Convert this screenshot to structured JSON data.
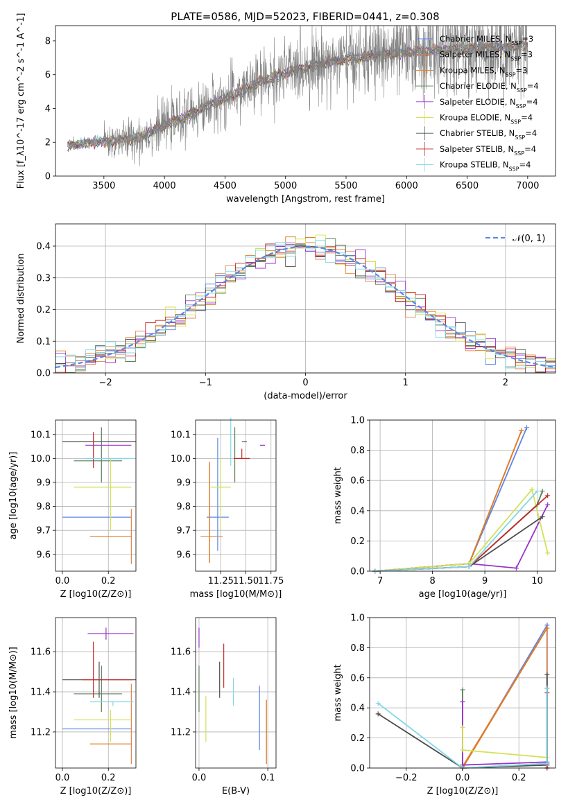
{
  "figure": {
    "title": "PLATE=0586, MJD=52023, FIBERID=0441, z=0.308"
  },
  "models": [
    {
      "key": "chabrier_miles",
      "label": "Chabrier MILES, N",
      "sub": "SSP",
      "suffix": "=3",
      "color": "#5b86e5"
    },
    {
      "key": "salpeter_miles",
      "label": "Salpeter MILES, N",
      "sub": "SSP",
      "suffix": "=3",
      "color": "#dd8452"
    },
    {
      "key": "kroupa_miles",
      "label": "Kroupa MILES, N",
      "sub": "SSP",
      "suffix": "=3",
      "color": "#e07b22"
    },
    {
      "key": "chabrier_elodie",
      "label": "Chabrier ELODIE, N",
      "sub": "SSP",
      "suffix": "=4",
      "color": "#5a7d5a"
    },
    {
      "key": "salpeter_elodie",
      "label": "Salpeter ELODIE, N",
      "sub": "SSP",
      "suffix": "=4",
      "color": "#9932cc"
    },
    {
      "key": "kroupa_elodie",
      "label": "Kroupa ELODIE, N",
      "sub": "SSP",
      "suffix": "=4",
      "color": "#d4e157"
    },
    {
      "key": "chabrier_stelib",
      "label": "Chabrier STELIB, N",
      "sub": "SSP",
      "suffix": "=4",
      "color": "#4d4d4d"
    },
    {
      "key": "salpeter_stelib",
      "label": "Salpeter STELIB, N",
      "sub": "SSP",
      "suffix": "=4",
      "color": "#c62828"
    },
    {
      "key": "kroupa_stelib",
      "label": "Kroupa STELIB, N",
      "sub": "SSP",
      "suffix": "=4",
      "color": "#80d8e8"
    }
  ],
  "chart_data": [
    {
      "id": "spectrum",
      "type": "line",
      "xlabel": "wavelength [Angstrom, rest frame]",
      "ylabel": "Flux [f_λ10^-17 erg cm^-2 s^-1 A^-1]",
      "xlim": [
        3100,
        7230
      ],
      "ylim": [
        0,
        8.9
      ],
      "xticks": [
        3500,
        4000,
        4500,
        5000,
        5500,
        6000,
        6500,
        7000
      ],
      "yticks": [
        0,
        2,
        4,
        6,
        8
      ],
      "grid": false,
      "legend": "upper right",
      "continuum": {
        "wavelength": [
          3200,
          3400,
          3600,
          3800,
          4000,
          4200,
          4400,
          4600,
          4800,
          5000,
          5200,
          5400,
          5600,
          5800,
          6000,
          6200,
          6400,
          6600,
          6800,
          7000,
          7200
        ],
        "flux": [
          1.8,
          2.0,
          2.1,
          2.3,
          3.0,
          3.6,
          4.3,
          4.9,
          5.6,
          6.1,
          6.5,
          6.8,
          7.0,
          7.2,
          7.3,
          7.4,
          7.5,
          7.6,
          7.6,
          7.7,
          7.8
        ]
      }
    },
    {
      "id": "residual-histogram",
      "type": "bar",
      "xlabel": "(data-model)/error",
      "ylabel": "Normed distribution",
      "xlim": [
        -2.5,
        2.5
      ],
      "ylim": [
        0,
        0.47
      ],
      "xticks": [
        -2,
        -1,
        0,
        1,
        2
      ],
      "yticks": [
        0.0,
        0.1,
        0.2,
        0.3,
        0.4
      ],
      "grid": true,
      "legend": "upper right",
      "reference_label": "𝒩(0, 1)",
      "reference_color": "#5b86e5"
    },
    {
      "id": "age-vs-metallicity",
      "type": "scatter",
      "xlabel": "Z [log10(Z/Z⊙)]",
      "ylabel": "age [log10(age/yr)]",
      "xlim": [
        -0.03,
        0.32
      ],
      "ylim": [
        9.53,
        10.16
      ],
      "xticks": [
        0.0,
        0.2
      ],
      "yticks": [
        9.6,
        9.7,
        9.8,
        9.9,
        10.0,
        10.1
      ],
      "grid": true,
      "points": [
        {
          "model": "chabrier_miles",
          "x": 0.15,
          "xerr": [
            0.15,
            0.15
          ],
          "y": 9.755,
          "yerr": [
            0,
            0
          ]
        },
        {
          "model": "salpeter_miles",
          "x": 0.3,
          "xerr": [
            0,
            0
          ],
          "y": 9.675,
          "yerr": [
            0.115,
            0.115
          ]
        },
        {
          "model": "kroupa_miles",
          "x": 0.21,
          "xerr": [
            0.09,
            0.09
          ],
          "y": 9.675,
          "yerr": [
            0,
            0
          ]
        },
        {
          "model": "chabrier_elodie",
          "x": 0.17,
          "xerr": [
            0.12,
            0.09
          ],
          "y": 9.99,
          "yerr": [
            0.09,
            0.14
          ]
        },
        {
          "model": "salpeter_elodie",
          "x": 0.18,
          "xerr": [
            0.08,
            0.12
          ],
          "y": 10.055,
          "yerr": [
            0,
            0
          ]
        },
        {
          "model": "kroupa_elodie",
          "x": 0.21,
          "xerr": [
            0.16,
            0.09
          ],
          "y": 9.88,
          "yerr": [
            0.18,
            0.12
          ]
        },
        {
          "model": "chabrier_stelib",
          "x": 0.16,
          "xerr": [
            0.16,
            0.16
          ],
          "y": 10.07,
          "yerr": [
            0,
            0
          ]
        },
        {
          "model": "salpeter_stelib",
          "x": 0.135,
          "xerr": [
            0,
            0
          ],
          "y": 10.04,
          "yerr": [
            0.08,
            0.07
          ]
        },
        {
          "model": "kroupa_stelib",
          "x": 0.22,
          "xerr": [
            0.12,
            0.09
          ],
          "y": 10.0,
          "yerr": [
            0,
            0
          ]
        }
      ]
    },
    {
      "id": "age-vs-mass",
      "type": "scatter",
      "xlabel": "mass [log10(M/M⊙)]",
      "ylabel": "",
      "xlim": [
        11.0,
        11.8
      ],
      "ylim": [
        9.53,
        10.16
      ],
      "xticks": [
        11.25,
        11.5,
        11.75
      ],
      "xticklabels": [
        "11.25",
        "11.50",
        "11.75"
      ],
      "yticks": [
        9.6,
        9.7,
        9.8,
        9.9,
        10.0,
        10.1
      ],
      "grid": true,
      "points": [
        {
          "model": "chabrier_miles",
          "x": 11.22,
          "xerr": [
            0.11,
            0.11
          ],
          "y": 9.755,
          "yerr": [
            0.14,
            0.33
          ]
        },
        {
          "model": "salpeter_miles",
          "x": 11.14,
          "xerr": [
            0.09,
            0.13
          ],
          "y": 9.675,
          "yerr": [
            0.11,
            0.31
          ]
        },
        {
          "model": "kroupa_miles",
          "x": 11.14,
          "xerr": [
            0,
            0
          ],
          "y": 9.675,
          "yerr": [
            0.11,
            0.31
          ]
        },
        {
          "model": "chabrier_elodie",
          "x": 11.39,
          "xerr": [
            0,
            0
          ],
          "y": 9.99,
          "yerr": [
            0.09,
            0.14
          ]
        },
        {
          "model": "salpeter_elodie",
          "x": 11.69,
          "xerr": [
            0.05,
            0
          ],
          "y": 10.055,
          "yerr": [
            0,
            0.0
          ]
        },
        {
          "model": "kroupa_elodie",
          "x": 11.25,
          "xerr": [
            0.1,
            0.1
          ],
          "y": 9.88,
          "yerr": [
            0.18,
            0.12
          ]
        },
        {
          "model": "chabrier_stelib",
          "x": 11.46,
          "xerr": [
            0,
            0.05
          ],
          "y": 10.07,
          "yerr": [
            0,
            0
          ]
        },
        {
          "model": "salpeter_stelib",
          "x": 11.46,
          "xerr": [
            0.08,
            0.08
          ],
          "y": 10.0,
          "yerr": [
            0,
            0.04
          ]
        },
        {
          "model": "kroupa_stelib",
          "x": 11.35,
          "xerr": [
            0,
            0
          ],
          "y": 10.0,
          "yerr": [
            0.03,
            0.17
          ]
        }
      ]
    },
    {
      "id": "mass-weight-vs-age",
      "type": "line",
      "xlabel": "age  [log10(age/yr)]",
      "ylabel": "mass weight",
      "xlim": [
        6.8,
        10.35
      ],
      "ylim": [
        0.0,
        1.0
      ],
      "xticks": [
        7,
        8,
        9,
        10
      ],
      "yticks": [
        0.0,
        0.2,
        0.4,
        0.6,
        0.8,
        1.0
      ],
      "grid": true,
      "series": [
        {
          "model": "chabrier_miles",
          "x": [
            6.9,
            8.7,
            9.8
          ],
          "y": [
            0.0,
            0.05,
            0.95
          ]
        },
        {
          "model": "salpeter_miles",
          "x": [
            6.9,
            8.7,
            9.7
          ],
          "y": [
            0.0,
            0.05,
            0.93
          ]
        },
        {
          "model": "kroupa_miles",
          "x": [
            6.9,
            8.7,
            9.7
          ],
          "y": [
            0.0,
            0.05,
            0.93
          ]
        },
        {
          "model": "chabrier_elodie",
          "x": [
            6.9,
            8.7,
            10.0,
            10.1
          ],
          "y": [
            0.0,
            0.03,
            0.44,
            0.53
          ]
        },
        {
          "model": "salpeter_elodie",
          "x": [
            6.9,
            8.7,
            9.6,
            10.2
          ],
          "y": [
            0.0,
            0.05,
            0.02,
            0.44
          ]
        },
        {
          "model": "kroupa_elodie",
          "x": [
            6.9,
            8.7,
            9.9,
            10.2
          ],
          "y": [
            0.0,
            0.05,
            0.54,
            0.12
          ]
        },
        {
          "model": "chabrier_stelib",
          "x": [
            6.9,
            8.7,
            10.1
          ],
          "y": [
            0.0,
            0.03,
            0.36
          ]
        },
        {
          "model": "salpeter_stelib",
          "x": [
            6.9,
            8.7,
            10.2
          ],
          "y": [
            0.0,
            0.03,
            0.5
          ]
        },
        {
          "model": "kroupa_stelib",
          "x": [
            6.9,
            8.7,
            10.0
          ],
          "y": [
            0.0,
            0.03,
            0.53
          ]
        }
      ]
    },
    {
      "id": "mass-vs-metallicity",
      "type": "scatter",
      "xlabel": "Z [log10(Z/Z⊙)]",
      "ylabel": "mass [log10(M/M⊙)]",
      "xlim": [
        -0.03,
        0.32
      ],
      "ylim": [
        11.02,
        11.77
      ],
      "xticks": [
        0.0,
        0.2
      ],
      "yticks": [
        11.2,
        11.4,
        11.6
      ],
      "grid": true,
      "points": [
        {
          "model": "chabrier_miles",
          "x": 0.15,
          "xerr": [
            0.15,
            0.15
          ],
          "y": 11.215,
          "yerr": [
            0,
            0
          ]
        },
        {
          "model": "salpeter_miles",
          "x": 0.3,
          "xerr": [
            0,
            0
          ],
          "y": 11.14,
          "yerr": [
            0.1,
            0.3
          ]
        },
        {
          "model": "kroupa_miles",
          "x": 0.21,
          "xerr": [
            0.09,
            0.09
          ],
          "y": 11.14,
          "yerr": [
            0,
            0
          ]
        },
        {
          "model": "chabrier_elodie",
          "x": 0.17,
          "xerr": [
            0.12,
            0.09
          ],
          "y": 11.39,
          "yerr": [
            0.09,
            0.14
          ]
        },
        {
          "model": "salpeter_elodie",
          "x": 0.19,
          "xerr": [
            0.08,
            0.12
          ],
          "y": 11.69,
          "yerr": [
            0.03,
            0.03
          ]
        },
        {
          "model": "kroupa_elodie",
          "x": 0.21,
          "xerr": [
            0.16,
            0.09
          ],
          "y": 11.26,
          "yerr": [
            0.11,
            0.05
          ]
        },
        {
          "model": "chabrier_stelib",
          "x": 0.16,
          "xerr": [
            0.16,
            0.16
          ],
          "y": 11.46,
          "yerr": [
            0.09,
            0.09
          ]
        },
        {
          "model": "salpeter_stelib",
          "x": 0.135,
          "xerr": [
            0.05,
            0.17
          ],
          "y": 11.46,
          "yerr": [
            0.09,
            0.19
          ]
        },
        {
          "model": "kroupa_stelib",
          "x": 0.22,
          "xerr": [
            0.1,
            0.09
          ],
          "y": 11.35,
          "yerr": [
            0.02,
            0.0
          ]
        }
      ]
    },
    {
      "id": "mass-vs-extinction",
      "type": "scatter",
      "xlabel": "E(B-V)",
      "ylabel": "",
      "xlim": [
        -0.005,
        0.112
      ],
      "ylim": [
        11.02,
        11.77
      ],
      "xticks": [
        0.0,
        0.1
      ],
      "xticklabels": [
        "0.0",
        "0.1"
      ],
      "yticks": [
        11.2,
        11.4,
        11.6
      ],
      "grid": true,
      "points": [
        {
          "model": "chabrier_miles",
          "x": 0.088,
          "xerr": [
            0,
            0
          ],
          "y": 11.22,
          "yerr": [
            0.11,
            0.21
          ]
        },
        {
          "model": "salpeter_miles",
          "x": 0.098,
          "xerr": [
            0,
            0
          ],
          "y": 11.14,
          "yerr": [
            0.1,
            0.22
          ]
        },
        {
          "model": "kroupa_miles",
          "x": 0.098,
          "xerr": [
            0,
            0
          ],
          "y": 11.14,
          "yerr": [
            0.1,
            0.22
          ]
        },
        {
          "model": "chabrier_elodie",
          "x": 0.0,
          "xerr": [
            0,
            0
          ],
          "y": 11.39,
          "yerr": [
            0.09,
            0.14
          ]
        },
        {
          "model": "salpeter_elodie",
          "x": 0.0,
          "xerr": [
            0,
            0
          ],
          "y": 11.69,
          "yerr": [
            0.07,
            0.03
          ]
        },
        {
          "model": "kroupa_elodie",
          "x": 0.01,
          "xerr": [
            0,
            0
          ],
          "y": 11.26,
          "yerr": [
            0.11,
            0.12
          ]
        },
        {
          "model": "chabrier_stelib",
          "x": 0.03,
          "xerr": [
            0,
            0
          ],
          "y": 11.46,
          "yerr": [
            0.09,
            0.09
          ]
        },
        {
          "model": "salpeter_stelib",
          "x": 0.036,
          "xerr": [
            0,
            0
          ],
          "y": 11.5,
          "yerr": [
            0.08,
            0.14
          ]
        },
        {
          "model": "kroupa_stelib",
          "x": 0.05,
          "xerr": [
            0,
            0
          ],
          "y": 11.35,
          "yerr": [
            0.02,
            0.12
          ]
        }
      ]
    },
    {
      "id": "mass-weight-vs-metallicity",
      "type": "line",
      "xlabel": "Z [log10(Z/Z⊙)]",
      "ylabel": "mass weight",
      "xlim": [
        -0.33,
        0.33
      ],
      "ylim": [
        0.0,
        1.0
      ],
      "xticks": [
        -0.2,
        0.0,
        0.2
      ],
      "yticks": [
        0.0,
        0.2,
        0.4,
        0.6,
        0.8,
        1.0
      ],
      "grid": true,
      "series": [
        {
          "model": "chabrier_miles",
          "x": [
            0.0,
            0.3,
            0.3
          ],
          "y": [
            0.0,
            0.95,
            0.0
          ]
        },
        {
          "model": "salpeter_miles",
          "x": [
            0.0,
            0.3,
            0.3
          ],
          "y": [
            0.01,
            0.93,
            0.02
          ]
        },
        {
          "model": "kroupa_miles",
          "x": [
            0.0,
            0.3
          ],
          "y": [
            0.0,
            0.93
          ]
        },
        {
          "model": "chabrier_elodie",
          "x": [
            0.0,
            0.0,
            0.3,
            0.3
          ],
          "y": [
            0.52,
            0.0,
            0.03,
            0.53
          ]
        },
        {
          "model": "salpeter_elodie",
          "x": [
            0.0,
            0.0,
            0.3
          ],
          "y": [
            0.44,
            0.02,
            0.04
          ]
        },
        {
          "model": "kroupa_elodie",
          "x": [
            0.0,
            0.0,
            0.3
          ],
          "y": [
            0.27,
            0.12,
            0.07
          ]
        },
        {
          "model": "chabrier_stelib",
          "x": [
            -0.3,
            0.0,
            0.3,
            0.3
          ],
          "y": [
            0.36,
            0.0,
            0.02,
            0.62
          ]
        },
        {
          "model": "salpeter_stelib",
          "x": [
            0.3,
            0.3
          ],
          "y": [
            0.0,
            0.5
          ]
        },
        {
          "model": "kroupa_stelib",
          "x": [
            -0.3,
            0.0,
            0.3,
            0.3
          ],
          "y": [
            0.43,
            0.0,
            0.03,
            0.53
          ]
        }
      ]
    }
  ]
}
